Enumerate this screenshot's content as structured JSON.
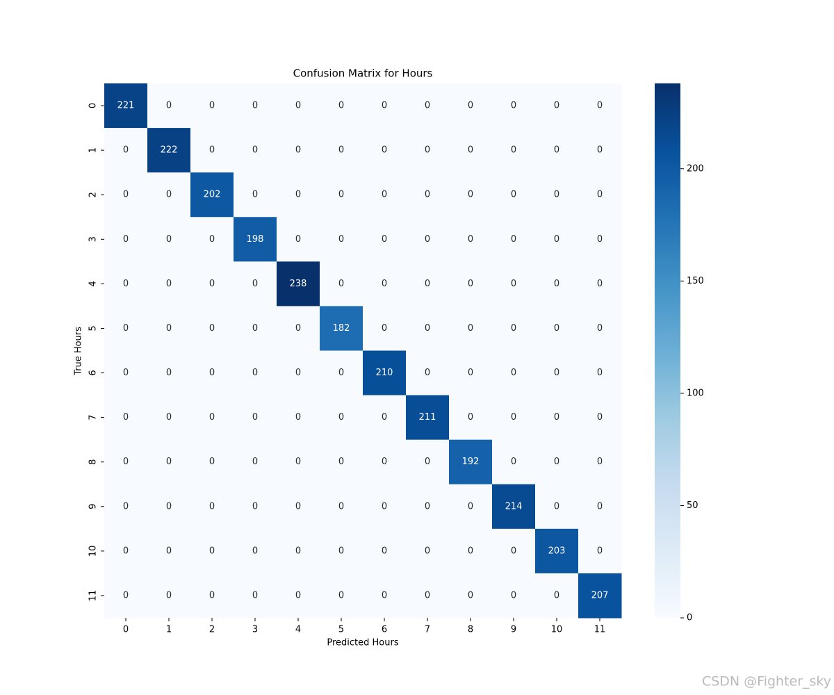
{
  "chart_data": {
    "type": "heatmap",
    "title": "Confusion Matrix for Hours",
    "xlabel": "Predicted Hours",
    "ylabel": "True Hours",
    "x_categories": [
      0,
      1,
      2,
      3,
      4,
      5,
      6,
      7,
      8,
      9,
      10,
      11
    ],
    "y_categories": [
      0,
      1,
      2,
      3,
      4,
      5,
      6,
      7,
      8,
      9,
      10,
      11
    ],
    "values": [
      [
        221,
        0,
        0,
        0,
        0,
        0,
        0,
        0,
        0,
        0,
        0,
        0
      ],
      [
        0,
        222,
        0,
        0,
        0,
        0,
        0,
        0,
        0,
        0,
        0,
        0
      ],
      [
        0,
        0,
        202,
        0,
        0,
        0,
        0,
        0,
        0,
        0,
        0,
        0
      ],
      [
        0,
        0,
        0,
        198,
        0,
        0,
        0,
        0,
        0,
        0,
        0,
        0
      ],
      [
        0,
        0,
        0,
        0,
        238,
        0,
        0,
        0,
        0,
        0,
        0,
        0
      ],
      [
        0,
        0,
        0,
        0,
        0,
        182,
        0,
        0,
        0,
        0,
        0,
        0
      ],
      [
        0,
        0,
        0,
        0,
        0,
        0,
        210,
        0,
        0,
        0,
        0,
        0
      ],
      [
        0,
        0,
        0,
        0,
        0,
        0,
        0,
        211,
        0,
        0,
        0,
        0
      ],
      [
        0,
        0,
        0,
        0,
        0,
        0,
        0,
        0,
        192,
        0,
        0,
        0
      ],
      [
        0,
        0,
        0,
        0,
        0,
        0,
        0,
        0,
        0,
        214,
        0,
        0
      ],
      [
        0,
        0,
        0,
        0,
        0,
        0,
        0,
        0,
        0,
        0,
        203,
        0
      ],
      [
        0,
        0,
        0,
        0,
        0,
        0,
        0,
        0,
        0,
        0,
        0,
        207
      ]
    ],
    "colormap": "Blues",
    "clim": [
      0,
      238
    ],
    "cticks": [
      0,
      50,
      100,
      150,
      200
    ]
  },
  "watermark": "CSDN @Fighter_sky"
}
